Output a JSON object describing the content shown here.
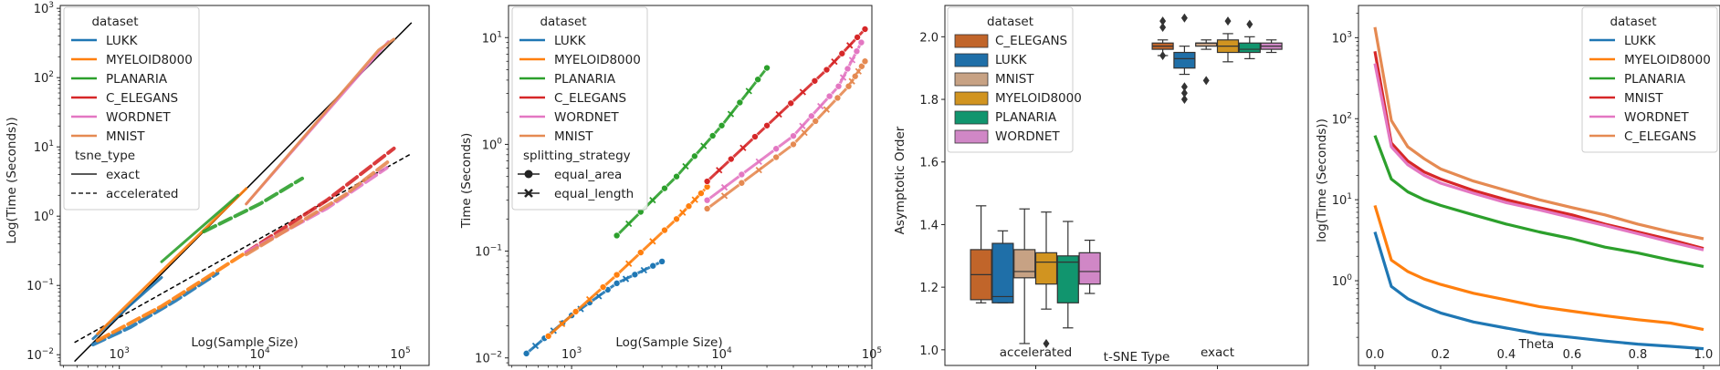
{
  "chart_data": [
    {
      "type": "line",
      "title": "",
      "xlabel": "Log(Sample Size)",
      "ylabel": "Log(Time (Seconds))",
      "xscale": "log",
      "yscale": "log",
      "xlim": [
        380,
        160000
      ],
      "ylim": [
        0.007,
        1100
      ],
      "x_ticks": [
        {
          "v": 1000,
          "l": "10",
          "e": "3"
        },
        {
          "v": 10000,
          "l": "10",
          "e": "4"
        },
        {
          "v": 100000,
          "l": "10",
          "e": "5"
        }
      ],
      "y_ticks": [
        {
          "v": 0.01,
          "l": "10",
          "e": "−2"
        },
        {
          "v": 0.1,
          "l": "10",
          "e": "−1"
        },
        {
          "v": 1,
          "l": "10",
          "e": "0"
        },
        {
          "v": 10,
          "l": "10",
          "e": "1"
        },
        {
          "v": 100,
          "l": "10",
          "e": "2"
        },
        {
          "v": 1000,
          "l": "10",
          "e": "3"
        }
      ],
      "legend": {
        "position": "top-left",
        "title": "dataset",
        "entries": [
          {
            "label": "LUKK",
            "color": "#1f77b4"
          },
          {
            "label": "MYELOID8000",
            "color": "#ff7f0e"
          },
          {
            "label": "PLANARIA",
            "color": "#2ca02c"
          },
          {
            "label": "C_ELEGANS",
            "color": "#d62728"
          },
          {
            "label": "WORDNET",
            "color": "#e377c2"
          },
          {
            "label": "MNIST",
            "color": "#e58a52"
          }
        ],
        "subtitle": "tsne_type",
        "style_entries": [
          {
            "label": "exact",
            "dash": "solid"
          },
          {
            "label": "accelerated",
            "dash": "dashed"
          }
        ]
      },
      "series": [
        {
          "name": "LUKK",
          "style": "exact",
          "color": "#1f77b4",
          "points": [
            [
              650,
              0.017
            ],
            [
              1000,
              0.038
            ],
            [
              2000,
              0.13
            ]
          ]
        },
        {
          "name": "MYELOID8000",
          "style": "exact",
          "color": "#ff7f0e",
          "points": [
            [
              700,
              0.02
            ],
            [
              2000,
              0.16
            ],
            [
              8000,
              2.5
            ]
          ]
        },
        {
          "name": "PLANARIA",
          "style": "exact",
          "color": "#2ca02c",
          "points": [
            [
              2000,
              0.22
            ],
            [
              7000,
              2.0
            ]
          ]
        },
        {
          "name": "WORDNET",
          "style": "exact",
          "color": "#e377c2",
          "points": [
            [
              8000,
              1.5
            ],
            [
              82000,
              330
            ]
          ]
        },
        {
          "name": "MNIST",
          "style": "exact",
          "color": "#e58a52",
          "points": [
            [
              8000,
              1.5
            ],
            [
              70000,
              250
            ],
            [
              90000,
              360
            ]
          ]
        },
        {
          "name": "LUKK",
          "style": "accelerated",
          "color": "#1f77b4",
          "points": [
            [
              650,
              0.014
            ],
            [
              1200,
              0.025
            ],
            [
              2500,
              0.06
            ],
            [
              5000,
              0.15
            ]
          ]
        },
        {
          "name": "MYELOID8000",
          "style": "accelerated",
          "color": "#ff7f0e",
          "points": [
            [
              700,
              0.016
            ],
            [
              2000,
              0.05
            ],
            [
              8000,
              0.3
            ]
          ]
        },
        {
          "name": "PLANARIA",
          "style": "accelerated",
          "color": "#2ca02c",
          "points": [
            [
              4000,
              0.6
            ],
            [
              10000,
              1.5
            ],
            [
              20000,
              3.5
            ]
          ]
        },
        {
          "name": "C_ELEGANS",
          "style": "accelerated",
          "color": "#d62728",
          "points": [
            [
              8000,
              0.3
            ],
            [
              30000,
              1.7
            ],
            [
              90000,
              9.5
            ]
          ]
        },
        {
          "name": "WORDNET",
          "style": "accelerated",
          "color": "#e377c2",
          "points": [
            [
              8000,
              0.3
            ],
            [
              30000,
              1.3
            ],
            [
              80000,
              5.0
            ]
          ]
        },
        {
          "name": "MNIST",
          "style": "accelerated",
          "color": "#e58a52",
          "points": [
            [
              8000,
              0.28
            ],
            [
              40000,
              2.0
            ],
            [
              85000,
              6.5
            ]
          ]
        }
      ],
      "reference_lines": [
        {
          "style": "exact",
          "color": "#000000",
          "points": [
            [
              480,
              0.008
            ],
            [
              120000,
              620
            ]
          ]
        },
        {
          "style": "accelerated",
          "color": "#000000",
          "points": [
            [
              480,
              0.015
            ],
            [
              120000,
              8.0
            ]
          ]
        }
      ]
    },
    {
      "type": "scatter",
      "title": "",
      "xlabel": "Log(Sample Size)",
      "ylabel": "Time (Seconds)",
      "xscale": "log",
      "yscale": "log",
      "xlim": [
        380,
        100000
      ],
      "ylim": [
        0.0085,
        20
      ],
      "x_ticks": [
        {
          "v": 1000,
          "l": "10",
          "e": "3"
        },
        {
          "v": 10000,
          "l": "10",
          "e": "4"
        },
        {
          "v": 100000,
          "l": "10",
          "e": "5"
        }
      ],
      "y_ticks": [
        {
          "v": 0.01,
          "l": "10",
          "e": "−2"
        },
        {
          "v": 0.1,
          "l": "10",
          "e": "−1"
        },
        {
          "v": 1,
          "l": "10",
          "e": "0"
        },
        {
          "v": 10,
          "l": "10",
          "e": "1"
        }
      ],
      "legend": {
        "position": "top-left",
        "title": "dataset",
        "entries": [
          {
            "label": "LUKK",
            "color": "#1f77b4"
          },
          {
            "label": "MYELOID8000",
            "color": "#ff7f0e"
          },
          {
            "label": "PLANARIA",
            "color": "#2ca02c"
          },
          {
            "label": "C_ELEGANS",
            "color": "#d62728"
          },
          {
            "label": "WORDNET",
            "color": "#e377c2"
          },
          {
            "label": "MNIST",
            "color": "#e58a52"
          }
        ],
        "subtitle": "splitting_strategy",
        "style_entries": [
          {
            "label": "equal_area",
            "marker": "circle"
          },
          {
            "label": "equal_length",
            "marker": "x"
          }
        ]
      },
      "series": [
        {
          "name": "LUKK",
          "color": "#1f77b4",
          "points": [
            [
              500,
              0.011
            ],
            [
              1000,
              0.025
            ],
            [
              2000,
              0.05
            ],
            [
              4000,
              0.08
            ]
          ]
        },
        {
          "name": "MYELOID8000",
          "color": "#ff7f0e",
          "points": [
            [
              700,
              0.016
            ],
            [
              2000,
              0.06
            ],
            [
              5000,
              0.2
            ],
            [
              8000,
              0.4
            ]
          ]
        },
        {
          "name": "PLANARIA",
          "color": "#2ca02c",
          "points": [
            [
              2000,
              0.14
            ],
            [
              5000,
              0.5
            ],
            [
              10000,
              1.5
            ],
            [
              20000,
              5.2
            ]
          ]
        },
        {
          "name": "C_ELEGANS",
          "color": "#d62728",
          "points": [
            [
              8000,
              0.45
            ],
            [
              20000,
              1.5
            ],
            [
              50000,
              5.0
            ],
            [
              90000,
              12.0
            ]
          ]
        },
        {
          "name": "WORDNET",
          "color": "#e377c2",
          "points": [
            [
              8000,
              0.3
            ],
            [
              30000,
              1.2
            ],
            [
              60000,
              3.5
            ],
            [
              85000,
              9.0
            ]
          ]
        },
        {
          "name": "MNIST",
          "color": "#e58a52",
          "points": [
            [
              8000,
              0.25
            ],
            [
              30000,
              1.0
            ],
            [
              70000,
              3.5
            ],
            [
              90000,
              6.0
            ]
          ]
        }
      ]
    },
    {
      "type": "box",
      "title": "",
      "xlabel": "t-SNE Type",
      "ylabel": "Asymptotic Order",
      "ylim": [
        0.95,
        2.1
      ],
      "categories": [
        "accelerated",
        "exact"
      ],
      "y_ticks": [
        {
          "v": 1.0,
          "l": "1.0"
        },
        {
          "v": 1.2,
          "l": "1.2"
        },
        {
          "v": 1.4,
          "l": "1.4"
        },
        {
          "v": 1.6,
          "l": "1.6"
        },
        {
          "v": 1.8,
          "l": "1.8"
        },
        {
          "v": 2.0,
          "l": "2.0"
        }
      ],
      "legend": {
        "position": "top-left",
        "title": "dataset",
        "entries": [
          {
            "label": "C_ELEGANS",
            "color": "#c1652a"
          },
          {
            "label": "LUKK",
            "color": "#1f6fa8"
          },
          {
            "label": "MNIST",
            "color": "#c7a284"
          },
          {
            "label": "MYELOID8000",
            "color": "#d19420"
          },
          {
            "label": "PLANARIA",
            "color": "#11956e"
          },
          {
            "label": "WORDNET",
            "color": "#d087c6"
          }
        ]
      },
      "series": [
        {
          "name": "C_ELEGANS",
          "color": "#c1652a",
          "boxes": [
            {
              "category": "accelerated",
              "whislo": 1.15,
              "q1": 1.16,
              "med": 1.24,
              "q3": 1.32,
              "whishi": 1.46,
              "fliers": []
            },
            {
              "category": "exact",
              "whislo": 1.94,
              "q1": 1.96,
              "med": 1.97,
              "q3": 1.98,
              "whishi": 1.99,
              "fliers": [
                1.94,
                2.03,
                2.05
              ]
            }
          ]
        },
        {
          "name": "LUKK",
          "color": "#1f6fa8",
          "boxes": [
            {
              "category": "accelerated",
              "whislo": 1.15,
              "q1": 1.15,
              "med": 1.17,
              "q3": 1.34,
              "whishi": 1.38,
              "fliers": []
            },
            {
              "category": "exact",
              "whislo": 1.88,
              "q1": 1.9,
              "med": 1.93,
              "q3": 1.95,
              "whishi": 1.97,
              "fliers": [
                1.8,
                1.82,
                1.84,
                2.06
              ]
            }
          ]
        },
        {
          "name": "MNIST",
          "color": "#c7a284",
          "boxes": [
            {
              "category": "accelerated",
              "whislo": 1.02,
              "q1": 1.23,
              "med": 1.25,
              "q3": 1.32,
              "whishi": 1.45,
              "fliers": []
            },
            {
              "category": "exact",
              "whislo": 1.96,
              "q1": 1.97,
              "med": 1.98,
              "q3": 1.98,
              "whishi": 1.99,
              "fliers": [
                1.86
              ]
            }
          ]
        },
        {
          "name": "MYELOID8000",
          "color": "#d19420",
          "boxes": [
            {
              "category": "accelerated",
              "whislo": 1.13,
              "q1": 1.21,
              "med": 1.28,
              "q3": 1.31,
              "whishi": 1.44,
              "fliers": [
                1.02
              ]
            },
            {
              "category": "exact",
              "whislo": 1.92,
              "q1": 1.95,
              "med": 1.97,
              "q3": 1.99,
              "whishi": 2.01,
              "fliers": [
                2.05
              ]
            }
          ]
        },
        {
          "name": "PLANARIA",
          "color": "#11956e",
          "boxes": [
            {
              "category": "accelerated",
              "whislo": 1.07,
              "q1": 1.15,
              "med": 1.28,
              "q3": 1.3,
              "whishi": 1.41,
              "fliers": []
            },
            {
              "category": "exact",
              "whislo": 1.93,
              "q1": 1.95,
              "med": 1.96,
              "q3": 1.98,
              "whishi": 2.0,
              "fliers": [
                2.04
              ]
            }
          ]
        },
        {
          "name": "WORDNET",
          "color": "#d087c6",
          "boxes": [
            {
              "category": "accelerated",
              "whislo": 1.18,
              "q1": 1.21,
              "med": 1.25,
              "q3": 1.31,
              "whishi": 1.35,
              "fliers": []
            },
            {
              "category": "exact",
              "whislo": 1.95,
              "q1": 1.96,
              "med": 1.97,
              "q3": 1.98,
              "whishi": 1.99,
              "fliers": []
            }
          ]
        }
      ]
    },
    {
      "type": "line",
      "title": "",
      "xlabel": "Theta",
      "ylabel": "log(Time (Seconds))",
      "xscale": "linear",
      "yscale": "log",
      "xlim": [
        -0.05,
        1.05
      ],
      "ylim": [
        0.09,
        2500
      ],
      "x_ticks": [
        {
          "v": 0.0,
          "l": "0.0"
        },
        {
          "v": 0.2,
          "l": "0.2"
        },
        {
          "v": 0.4,
          "l": "0.4"
        },
        {
          "v": 0.6,
          "l": "0.6"
        },
        {
          "v": 0.8,
          "l": "0.8"
        },
        {
          "v": 1.0,
          "l": "1.0"
        }
      ],
      "y_ticks": [
        {
          "v": 1,
          "l": "10",
          "e": "0"
        },
        {
          "v": 10,
          "l": "10",
          "e": "1"
        },
        {
          "v": 100,
          "l": "10",
          "e": "2"
        },
        {
          "v": 1000,
          "l": "10",
          "e": "3"
        }
      ],
      "legend": {
        "position": "top-right",
        "title": "dataset",
        "entries": [
          {
            "label": "LUKK",
            "color": "#1f77b4"
          },
          {
            "label": "MYELOID8000",
            "color": "#ff7f0e"
          },
          {
            "label": "PLANARIA",
            "color": "#2ca02c"
          },
          {
            "label": "MNIST",
            "color": "#d62728"
          },
          {
            "label": "WORDNET",
            "color": "#e377c2"
          },
          {
            "label": "C_ELEGANS",
            "color": "#e58a52"
          }
        ]
      },
      "x": [
        0.0,
        0.05,
        0.1,
        0.15,
        0.2,
        0.3,
        0.4,
        0.5,
        0.6,
        0.7,
        0.8,
        0.9,
        1.0
      ],
      "series": [
        {
          "name": "LUKK",
          "color": "#1f77b4",
          "values": [
            4.0,
            0.85,
            0.6,
            0.48,
            0.4,
            0.31,
            0.26,
            0.22,
            0.2,
            0.18,
            0.165,
            0.155,
            0.145
          ]
        },
        {
          "name": "MYELOID8000",
          "color": "#ff7f0e",
          "values": [
            8.5,
            1.8,
            1.3,
            1.05,
            0.9,
            0.7,
            0.58,
            0.48,
            0.42,
            0.37,
            0.33,
            0.3,
            0.25
          ]
        },
        {
          "name": "PLANARIA",
          "color": "#2ca02c",
          "values": [
            62,
            18,
            12.5,
            10,
            8.5,
            6.5,
            5.0,
            4.0,
            3.3,
            2.6,
            2.2,
            1.8,
            1.5
          ]
        },
        {
          "name": "MNIST",
          "color": "#d62728",
          "values": [
            680,
            50,
            30,
            22,
            18,
            13,
            10,
            8.0,
            6.5,
            5.0,
            4.0,
            3.2,
            2.5
          ]
        },
        {
          "name": "WORDNET",
          "color": "#e377c2",
          "values": [
            480,
            45,
            27,
            20,
            16,
            12,
            9.2,
            7.5,
            6.0,
            4.8,
            3.8,
            3.0,
            2.4
          ]
        },
        {
          "name": "C_ELEGANS",
          "color": "#e58a52",
          "values": [
            1350,
            95,
            45,
            32,
            24,
            17,
            13,
            10,
            8.0,
            6.5,
            5.0,
            4.0,
            3.3
          ]
        }
      ]
    }
  ]
}
